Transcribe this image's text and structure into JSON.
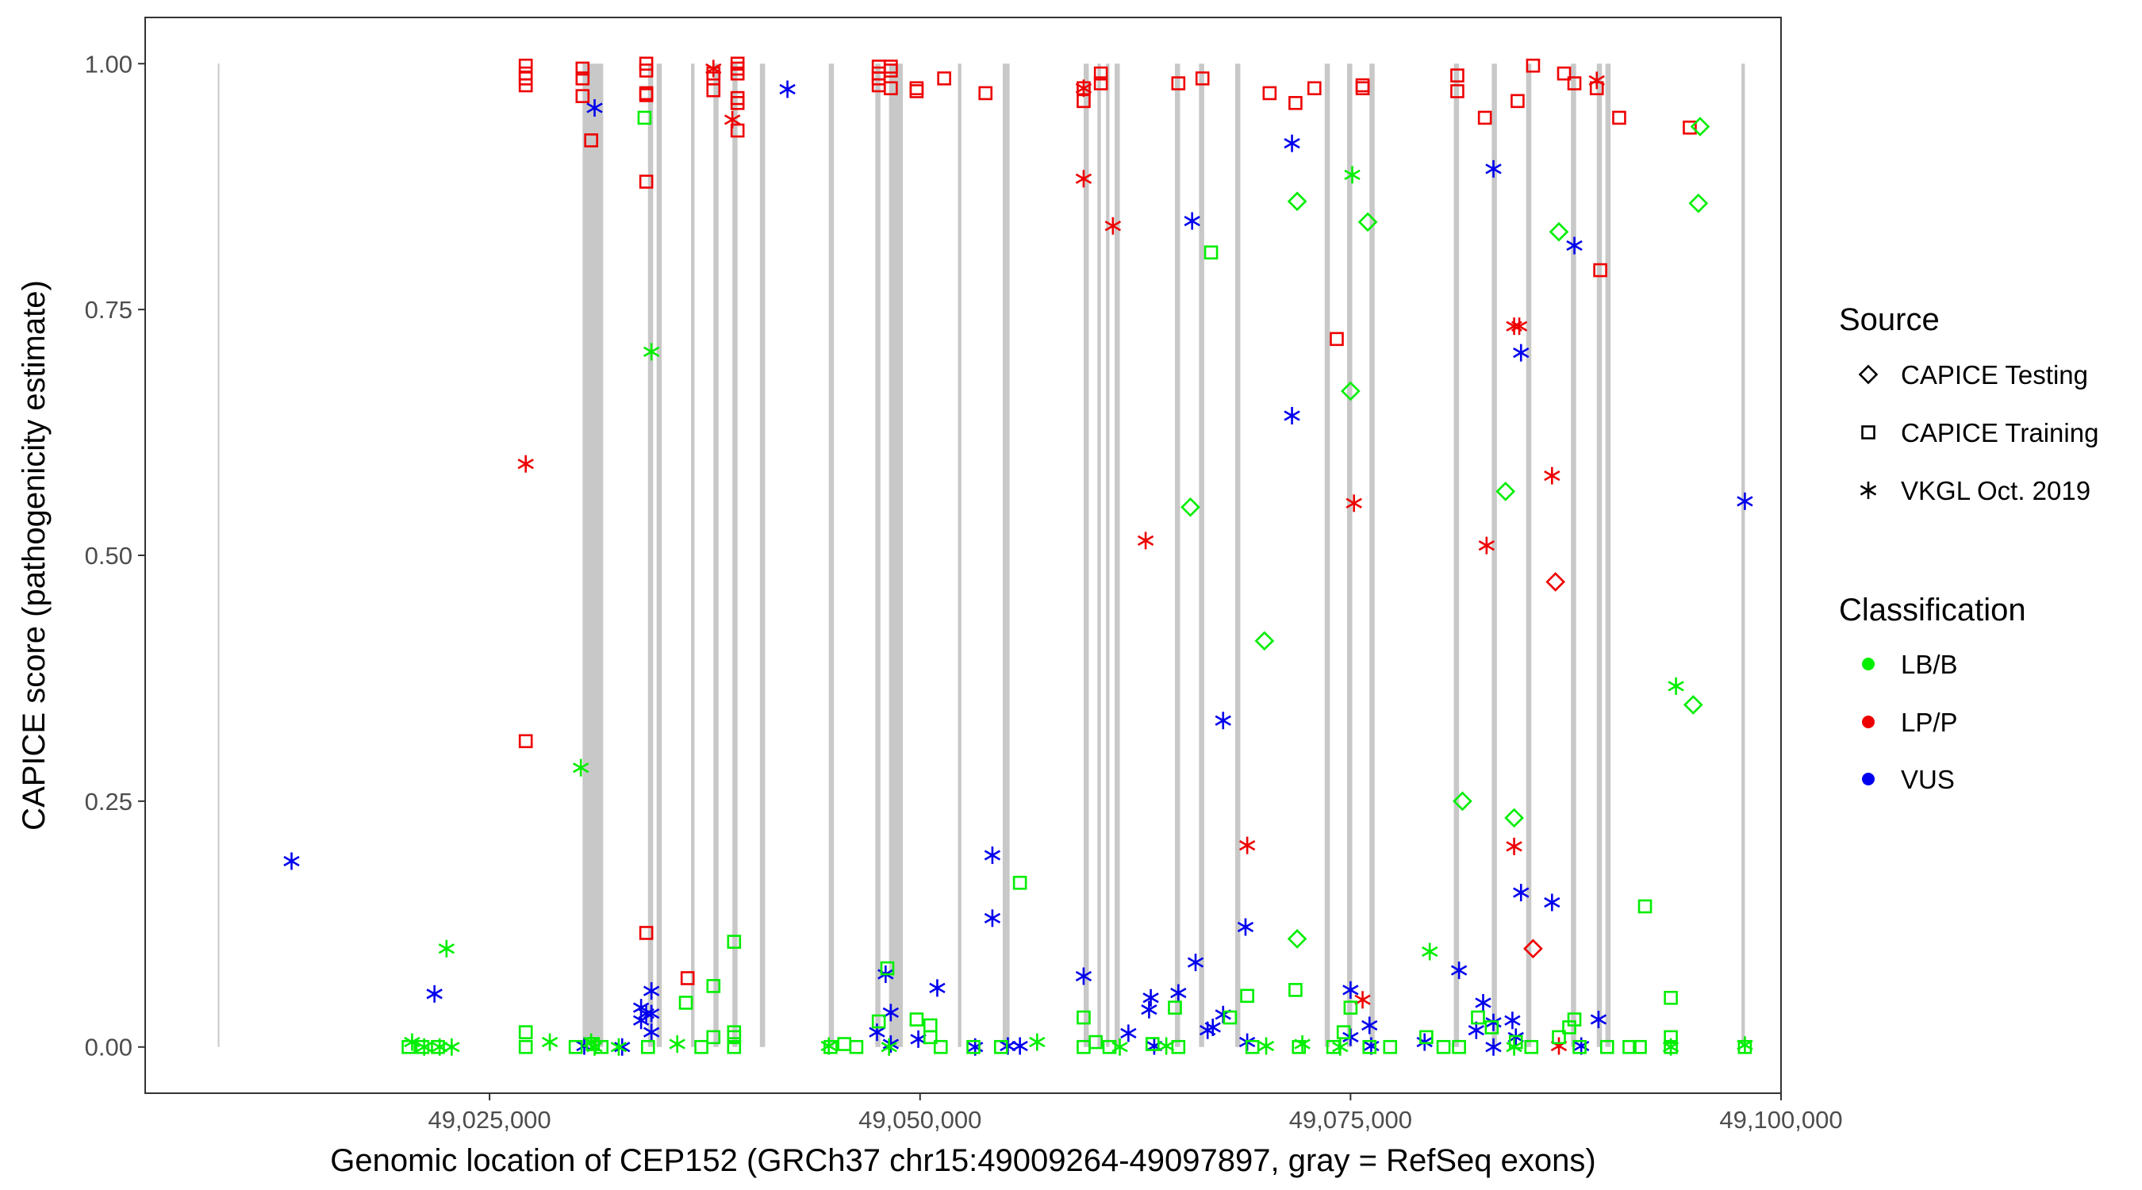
{
  "chart_data": {
    "type": "scatter",
    "xlabel": "Genomic location of CEP152 (GRCh37 chr15:49009264-49097897, gray = RefSeq exons)",
    "ylabel": "CAPICE score (pathogenicity estimate)",
    "xlim": [
      49005000,
      49100000
    ],
    "ylim": [
      -0.047,
      1.047
    ],
    "x_ticks": [
      49025000,
      49050000,
      49075000,
      49100000
    ],
    "x_tick_labels": [
      "49,025,000",
      "49,050,000",
      "49,075,000",
      "49,100,000"
    ],
    "y_ticks": [
      0,
      0.25,
      0.5,
      0.75,
      1.0
    ],
    "y_tick_labels": [
      "0.00",
      "0.25",
      "0.50",
      "0.75",
      "1.00"
    ],
    "gene_span": {
      "start": 49009264,
      "end": 49097897,
      "y_range": [
        0,
        1
      ]
    },
    "exons": [
      [
        49030400,
        49031600
      ],
      [
        49034200,
        49034500
      ],
      [
        49034700,
        49035000
      ],
      [
        49036700,
        49036900
      ],
      [
        49038000,
        49038300
      ],
      [
        49039100,
        49039400
      ],
      [
        49040700,
        49041000
      ],
      [
        49044700,
        49045000
      ],
      [
        49047400,
        49047700
      ],
      [
        49048200,
        49049000
      ],
      [
        49052200,
        49052400
      ],
      [
        49054800,
        49055200
      ],
      [
        49059500,
        49059800
      ],
      [
        49060300,
        49060500
      ],
      [
        49060800,
        49061000
      ],
      [
        49061300,
        49061600
      ],
      [
        49064800,
        49065100
      ],
      [
        49066200,
        49066500
      ],
      [
        49068300,
        49068600
      ],
      [
        49073500,
        49073800
      ],
      [
        49074800,
        49075100
      ],
      [
        49076100,
        49076400
      ],
      [
        49081000,
        49081300
      ],
      [
        49083200,
        49083500
      ],
      [
        49085200,
        49085500
      ],
      [
        49087800,
        49088100
      ],
      [
        49089300,
        49089600
      ],
      [
        49089800,
        49090100
      ],
      [
        49097700,
        49097900
      ]
    ],
    "legend": {
      "source": {
        "title": "Source",
        "entries": [
          {
            "label": "CAPICE Testing",
            "shape": "diamond"
          },
          {
            "label": "CAPICE Training",
            "shape": "square"
          },
          {
            "label": "VKGL Oct. 2019",
            "shape": "asterisk"
          }
        ]
      },
      "classification": {
        "title": "Classification",
        "entries": [
          {
            "label": "LB/B",
            "color": "#00ee00"
          },
          {
            "label": "LP/P",
            "color": "#ee0000"
          },
          {
            "label": "VUS",
            "color": "#0000ee"
          }
        ]
      }
    },
    "series": [
      {
        "name": "CAPICE Training LP/P",
        "source": "CAPICE Training",
        "class": "LP/P",
        "points": [
          [
            49027100,
            0.998
          ],
          [
            49027100,
            0.99
          ],
          [
            49027100,
            0.985
          ],
          [
            49027100,
            0.978
          ],
          [
            49030400,
            0.995
          ],
          [
            49030400,
            0.985
          ],
          [
            49030400,
            0.967
          ],
          [
            49030900,
            0.922
          ],
          [
            49034100,
            1.0
          ],
          [
            49034100,
            0.993
          ],
          [
            49034100,
            0.97
          ],
          [
            49034100,
            0.968
          ],
          [
            49034100,
            0.88
          ],
          [
            49034100,
            0.116
          ],
          [
            49027100,
            0.311
          ],
          [
            49036500,
            0.07
          ],
          [
            49038000,
            0.99
          ],
          [
            49038000,
            0.985
          ],
          [
            49038000,
            0.973
          ],
          [
            49039400,
            1.0
          ],
          [
            49039400,
            0.995
          ],
          [
            49039400,
            0.99
          ],
          [
            49039400,
            0.965
          ],
          [
            49039400,
            0.96
          ],
          [
            49039400,
            0.932
          ],
          [
            49047600,
            0.997
          ],
          [
            49047600,
            0.99
          ],
          [
            49047600,
            0.985
          ],
          [
            49047600,
            0.978
          ],
          [
            49048300,
            0.997
          ],
          [
            49048300,
            0.993
          ],
          [
            49048300,
            0.975
          ],
          [
            49049800,
            0.975
          ],
          [
            49049800,
            0.972
          ],
          [
            49051400,
            0.985
          ],
          [
            49053800,
            0.97
          ],
          [
            49059500,
            0.975
          ],
          [
            49059500,
            0.962
          ],
          [
            49060500,
            0.99
          ],
          [
            49060500,
            0.98
          ],
          [
            49065000,
            0.98
          ],
          [
            49066400,
            0.985
          ],
          [
            49070300,
            0.97
          ],
          [
            49071800,
            0.96
          ],
          [
            49072900,
            0.975
          ],
          [
            49074200,
            0.72
          ],
          [
            49075700,
            0.978
          ],
          [
            49075700,
            0.975
          ],
          [
            49081200,
            0.988
          ],
          [
            49081200,
            0.972
          ],
          [
            49082800,
            0.945
          ],
          [
            49084700,
            0.962
          ],
          [
            49085600,
            0.998
          ],
          [
            49087400,
            0.99
          ],
          [
            49088000,
            0.98
          ],
          [
            49089300,
            0.975
          ],
          [
            49089500,
            0.79
          ],
          [
            49090600,
            0.945
          ],
          [
            49094700,
            0.935
          ]
        ]
      },
      {
        "name": "VKGL LP/P",
        "source": "VKGL Oct. 2019",
        "class": "LP/P",
        "points": [
          [
            49027100,
            0.593
          ],
          [
            49038000,
            0.995
          ],
          [
            49039100,
            0.943
          ],
          [
            49059500,
            0.883
          ],
          [
            49059500,
            0.975
          ],
          [
            49061200,
            0.835
          ],
          [
            49063100,
            0.515
          ],
          [
            49069000,
            0.205
          ],
          [
            49075200,
            0.553
          ],
          [
            49075700,
            0.048
          ],
          [
            49082900,
            0.51
          ],
          [
            49084500,
            0.733
          ],
          [
            49084800,
            0.733
          ],
          [
            49084500,
            0.204
          ],
          [
            49086700,
            0.581
          ],
          [
            49087100,
            0.001
          ],
          [
            49089300,
            0.983
          ]
        ]
      },
      {
        "name": "CAPICE Testing LP/P",
        "source": "CAPICE Testing",
        "class": "LP/P",
        "points": [
          [
            49086900,
            0.473
          ],
          [
            49085600,
            0.1
          ]
        ]
      },
      {
        "name": "VKGL VUS",
        "source": "VKGL Oct. 2019",
        "class": "VUS",
        "points": [
          [
            49013500,
            0.189
          ],
          [
            49021800,
            0.054
          ],
          [
            49031100,
            0.955
          ],
          [
            49033800,
            0.04
          ],
          [
            49033800,
            0.027
          ],
          [
            49034100,
            0.034
          ],
          [
            49034400,
            0.057
          ],
          [
            49034400,
            0.034
          ],
          [
            49034400,
            0.015
          ],
          [
            49042300,
            0.974
          ],
          [
            49030500,
            0.001
          ],
          [
            49032700,
            0.0
          ],
          [
            49047500,
            0.015
          ],
          [
            49048000,
            0.074
          ],
          [
            49048300,
            0.035
          ],
          [
            49048300,
            0.003
          ],
          [
            49049900,
            0.008
          ],
          [
            49051000,
            0.06
          ],
          [
            49053200,
            0.0
          ],
          [
            49054200,
            0.195
          ],
          [
            49054200,
            0.131
          ],
          [
            49055100,
            0.001
          ],
          [
            49055800,
            0.001
          ],
          [
            49059500,
            0.072
          ],
          [
            49062100,
            0.014
          ],
          [
            49063300,
            0.038
          ],
          [
            49063400,
            0.05
          ],
          [
            49063600,
            0.001
          ],
          [
            49065000,
            0.055
          ],
          [
            49065800,
            0.84
          ],
          [
            49066000,
            0.086
          ],
          [
            49066700,
            0.017
          ],
          [
            49067000,
            0.02
          ],
          [
            49067600,
            0.332
          ],
          [
            49067600,
            0.033
          ],
          [
            49068900,
            0.122
          ],
          [
            49069000,
            0.005
          ],
          [
            49071600,
            0.919
          ],
          [
            49071600,
            0.642
          ],
          [
            49075000,
            0.058
          ],
          [
            49075000,
            0.01
          ],
          [
            49076100,
            0.022
          ],
          [
            49076200,
            0.001
          ],
          [
            49079300,
            0.005
          ],
          [
            49081300,
            0.078
          ],
          [
            49082300,
            0.017
          ],
          [
            49082700,
            0.045
          ],
          [
            49083300,
            0.893
          ],
          [
            49083300,
            0.025
          ],
          [
            49083300,
            0.0
          ],
          [
            49084400,
            0.027
          ],
          [
            49084600,
            0.01
          ],
          [
            49084900,
            0.706
          ],
          [
            49084900,
            0.157
          ],
          [
            49086700,
            0.147
          ],
          [
            49088000,
            0.815
          ],
          [
            49088400,
            0.001
          ],
          [
            49089400,
            0.028
          ],
          [
            49097900,
            0.555
          ]
        ]
      },
      {
        "name": "CAPICE Training LB/B",
        "source": "CAPICE Training",
        "class": "LB/B",
        "points": [
          [
            49020300,
            0.0
          ],
          [
            49021100,
            0.0
          ],
          [
            49022000,
            0.0
          ],
          [
            49027100,
            0.015
          ],
          [
            49027100,
            0.0
          ],
          [
            49030000,
            0.0
          ],
          [
            49031000,
            0.003
          ],
          [
            49031500,
            0.0
          ],
          [
            49034000,
            0.945
          ],
          [
            49034200,
            0.0
          ],
          [
            49036400,
            0.045
          ],
          [
            49037300,
            0.0
          ],
          [
            49038000,
            0.062
          ],
          [
            49038000,
            0.01
          ],
          [
            49039200,
            0.107
          ],
          [
            49039200,
            0.015
          ],
          [
            49039200,
            0.01
          ],
          [
            49039200,
            0.0
          ],
          [
            49044800,
            0.0
          ],
          [
            49045600,
            0.003
          ],
          [
            49046300,
            0.0
          ],
          [
            49047600,
            0.026
          ],
          [
            49048100,
            0.08
          ],
          [
            49049800,
            0.028
          ],
          [
            49050600,
            0.022
          ],
          [
            49050600,
            0.01
          ],
          [
            49051200,
            0.0
          ],
          [
            49053100,
            0.0
          ],
          [
            49054700,
            0.0
          ],
          [
            49055800,
            0.167
          ],
          [
            49059500,
            0.03
          ],
          [
            49059500,
            0.0
          ],
          [
            49060200,
            0.005
          ],
          [
            49061000,
            0.0
          ],
          [
            49063500,
            0.003
          ],
          [
            49064800,
            0.04
          ],
          [
            49065000,
            0.0
          ],
          [
            49066900,
            0.808
          ],
          [
            49068000,
            0.03
          ],
          [
            49069000,
            0.052
          ],
          [
            49069300,
            0.0
          ],
          [
            49071800,
            0.058
          ],
          [
            49072000,
            0.0
          ],
          [
            49074000,
            0.0
          ],
          [
            49074600,
            0.015
          ],
          [
            49075000,
            0.04
          ],
          [
            49076100,
            0.0
          ],
          [
            49077300,
            0.0
          ],
          [
            49079400,
            0.01
          ],
          [
            49080400,
            0.0
          ],
          [
            49081300,
            0.0
          ],
          [
            49082400,
            0.03
          ],
          [
            49083200,
            0.02
          ],
          [
            49084600,
            0.005
          ],
          [
            49085500,
            0.0
          ],
          [
            49087100,
            0.01
          ],
          [
            49087700,
            0.02
          ],
          [
            49088000,
            0.028
          ],
          [
            49088300,
            0.0
          ],
          [
            49089900,
            0.0
          ],
          [
            49091200,
            0.0
          ],
          [
            49092100,
            0.143
          ],
          [
            49091800,
            0.0
          ],
          [
            49093600,
            0.05
          ],
          [
            49093600,
            0.01
          ],
          [
            49093600,
            0.0
          ],
          [
            49097900,
            0.0
          ]
        ]
      },
      {
        "name": "VKGL LB/B",
        "source": "VKGL Oct. 2019",
        "class": "LB/B",
        "points": [
          [
            49020500,
            0.005
          ],
          [
            49021200,
            0.0
          ],
          [
            49022100,
            0.0
          ],
          [
            49022500,
            0.1
          ],
          [
            49022800,
            0.0
          ],
          [
            49028500,
            0.005
          ],
          [
            49030300,
            0.284
          ],
          [
            49030900,
            0.005
          ],
          [
            49031100,
            0.0
          ],
          [
            49034400,
            0.707
          ],
          [
            49035900,
            0.003
          ],
          [
            49032500,
            0.0
          ],
          [
            49044700,
            0.001
          ],
          [
            49048200,
            0.0
          ],
          [
            49056800,
            0.005
          ],
          [
            49061600,
            0.0
          ],
          [
            49064300,
            0.001
          ],
          [
            49070100,
            0.001
          ],
          [
            49072200,
            0.003
          ],
          [
            49074400,
            0.0
          ],
          [
            49075100,
            0.887
          ],
          [
            49079600,
            0.097
          ],
          [
            49084500,
            0.0
          ],
          [
            49093900,
            0.367
          ],
          [
            49093600,
            0.0
          ],
          [
            49097900,
            0.002
          ]
        ]
      },
      {
        "name": "CAPICE Testing LB/B",
        "source": "CAPICE Testing",
        "class": "LB/B",
        "points": [
          [
            49065700,
            0.549
          ],
          [
            49070000,
            0.413
          ],
          [
            49071900,
            0.86
          ],
          [
            49071900,
            0.11
          ],
          [
            49075000,
            0.667
          ],
          [
            49076000,
            0.839
          ],
          [
            49081500,
            0.25
          ],
          [
            49084000,
            0.565
          ],
          [
            49084500,
            0.233
          ],
          [
            49087100,
            0.829
          ],
          [
            49094900,
            0.348
          ],
          [
            49095300,
            0.936
          ],
          [
            49095200,
            0.858
          ]
        ]
      }
    ]
  }
}
